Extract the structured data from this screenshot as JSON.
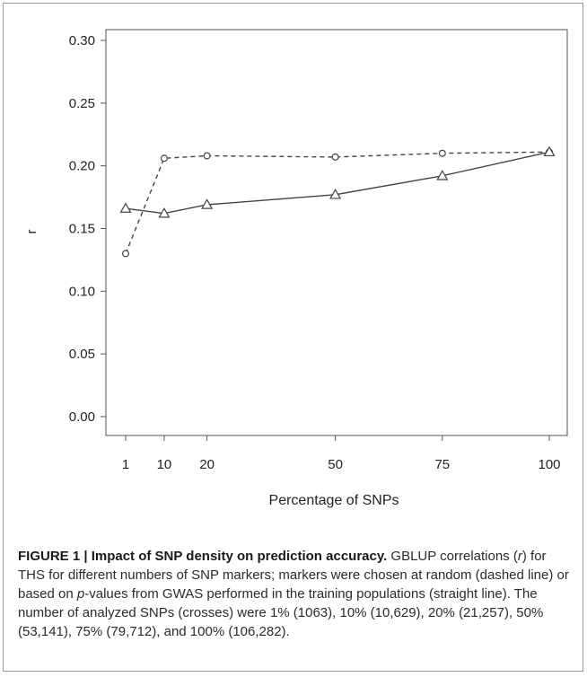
{
  "chart_data": {
    "type": "line",
    "x": [
      1,
      10,
      20,
      50,
      75,
      100
    ],
    "x_tick_labels": [
      "1",
      "10",
      "20",
      "50",
      "75",
      "100"
    ],
    "y_tick_labels": [
      "0.00",
      "0.05",
      "0.10",
      "0.15",
      "0.20",
      "0.25",
      "0.30"
    ],
    "y_ticks": [
      0.0,
      0.05,
      0.1,
      0.15,
      0.2,
      0.25,
      0.3
    ],
    "ylim": [
      0.0,
      0.3
    ],
    "xlabel": "Percentage of SNPs",
    "ylabel": "r",
    "grid": false,
    "legend": "none",
    "series": [
      {
        "line_style": "dashed",
        "marker": "circle",
        "values": [
          0.13,
          0.206,
          0.208,
          0.207,
          0.21,
          0.211
        ]
      },
      {
        "line_style": "solid",
        "marker": "triangle",
        "values": [
          0.166,
          0.162,
          0.169,
          0.177,
          0.192,
          0.211
        ]
      }
    ]
  },
  "caption": {
    "label": "FIGURE 1 | Impact of SNP density on prediction accuracy.",
    "text_1": " GBLUP correlations (",
    "r": "r",
    "text_2": ") for THS for different numbers of SNP markers; markers were chosen at random (dashed line) or based on ",
    "p": "p",
    "text_3": "-values from GWAS performed in the training populations (straight line). The number of analyzed SNPs (crosses) were 1% (1063), 10% (10,629), 20% (21,257), 50% (53,141), 75% (79,712), and 100% (106,282)."
  }
}
